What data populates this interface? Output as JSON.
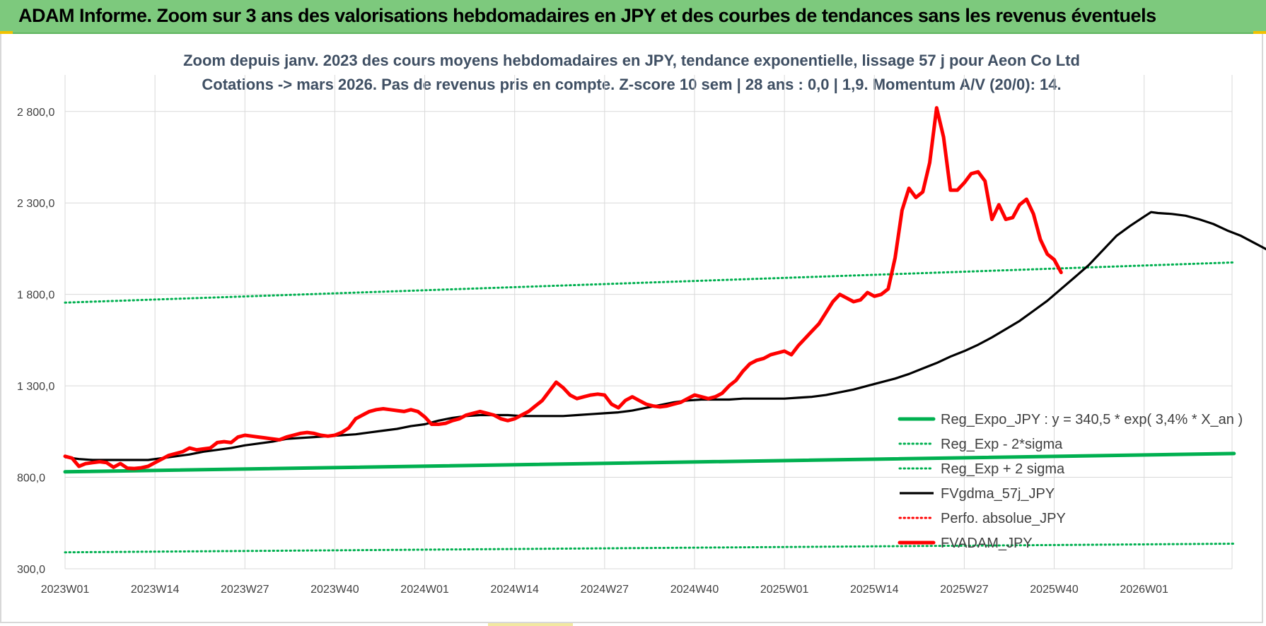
{
  "banner": {
    "title": "ADAM Informe. Zoom sur 3 ans des valorisations hebdomadaires en JPY et des courbes de tendances sans les revenus éventuels"
  },
  "colors": {
    "banner_bg": "#7dc97d",
    "reg_expo": "#00b050",
    "gdma": "#000000",
    "adam": "#ff0000",
    "grid": "#d9d9d9",
    "title_text": "#3f4f63"
  },
  "chart_data": {
    "type": "line",
    "title": [
      "Zoom depuis janv. 2023 des cours moyens hebdomadaires en JPY, tendance exponentielle, lissage 57 j pour Aeon Co Ltd",
      "Cotations -> mars 2026. Pas de revenus pris en compte. Z-score 10 sem | 28 ans : 0,0 | 1,9. Momentum A/V (20/0): 14."
    ],
    "x_ticks": [
      {
        "week": 0,
        "label": "2023W01"
      },
      {
        "week": 13,
        "label": "2023W14"
      },
      {
        "week": 26,
        "label": "2023W27"
      },
      {
        "week": 39,
        "label": "2023W40"
      },
      {
        "week": 52,
        "label": "2024W01"
      },
      {
        "week": 65,
        "label": "2024W14"
      },
      {
        "week": 78,
        "label": "2024W27"
      },
      {
        "week": 91,
        "label": "2024W40"
      },
      {
        "week": 104,
        "label": "2025W01"
      },
      {
        "week": 117,
        "label": "2025W14"
      },
      {
        "week": 130,
        "label": "2025W27"
      },
      {
        "week": 143,
        "label": "2025W40"
      },
      {
        "week": 156,
        "label": "2026W01"
      }
    ],
    "x_range": [
      0,
      169
    ],
    "ylim": [
      300,
      3000
    ],
    "y_ticks": [
      {
        "value": 300,
        "label": "300,0"
      },
      {
        "value": 800,
        "label": "800,0"
      },
      {
        "value": 1300,
        "label": "1 300,0"
      },
      {
        "value": 1800,
        "label": "1 800,0"
      },
      {
        "value": 2300,
        "label": "2 300,0"
      },
      {
        "value": 2800,
        "label": "2 800,0"
      }
    ],
    "grid": true,
    "legend_position": "bottom-right",
    "series": [
      {
        "name": "Reg_Expo_JPY : y = 340,5 * exp( 3,4% *  X_an )",
        "style": "thick-solid",
        "color": "#00b050",
        "points": [
          [
            0,
            830
          ],
          [
            169,
            930
          ]
        ]
      },
      {
        "name": "Reg_Exp - 2*sigma",
        "style": "dotted",
        "color": "#00b050",
        "points": [
          [
            0,
            390
          ],
          [
            169,
            437
          ]
        ]
      },
      {
        "name": "Reg_Exp + 2 sigma",
        "style": "dotted",
        "color": "#00b050",
        "points": [
          [
            0,
            1755
          ],
          [
            169,
            1975
          ]
        ]
      },
      {
        "name": "FVgdma_57j_JPY",
        "style": "solid",
        "color": "#000000",
        "points": [
          [
            0,
            910
          ],
          [
            2,
            900
          ],
          [
            4,
            895
          ],
          [
            6,
            895
          ],
          [
            8,
            895
          ],
          [
            10,
            895
          ],
          [
            12,
            895
          ],
          [
            14,
            905
          ],
          [
            16,
            915
          ],
          [
            18,
            925
          ],
          [
            20,
            940
          ],
          [
            22,
            950
          ],
          [
            24,
            960
          ],
          [
            26,
            975
          ],
          [
            28,
            985
          ],
          [
            30,
            995
          ],
          [
            32,
            1010
          ],
          [
            34,
            1015
          ],
          [
            36,
            1020
          ],
          [
            38,
            1025
          ],
          [
            40,
            1030
          ],
          [
            42,
            1035
          ],
          [
            44,
            1045
          ],
          [
            46,
            1055
          ],
          [
            48,
            1065
          ],
          [
            50,
            1080
          ],
          [
            52,
            1090
          ],
          [
            54,
            1110
          ],
          [
            56,
            1125
          ],
          [
            58,
            1135
          ],
          [
            60,
            1140
          ],
          [
            62,
            1140
          ],
          [
            64,
            1140
          ],
          [
            66,
            1135
          ],
          [
            68,
            1135
          ],
          [
            70,
            1135
          ],
          [
            72,
            1135
          ],
          [
            74,
            1140
          ],
          [
            76,
            1145
          ],
          [
            78,
            1150
          ],
          [
            80,
            1155
          ],
          [
            82,
            1165
          ],
          [
            84,
            1180
          ],
          [
            86,
            1195
          ],
          [
            88,
            1210
          ],
          [
            90,
            1220
          ],
          [
            92,
            1225
          ],
          [
            94,
            1225
          ],
          [
            96,
            1225
          ],
          [
            98,
            1230
          ],
          [
            100,
            1230
          ],
          [
            102,
            1230
          ],
          [
            104,
            1230
          ],
          [
            106,
            1235
          ],
          [
            108,
            1240
          ],
          [
            110,
            1250
          ],
          [
            112,
            1265
          ],
          [
            114,
            1280
          ],
          [
            116,
            1300
          ],
          [
            118,
            1320
          ],
          [
            120,
            1340
          ],
          [
            122,
            1365
          ],
          [
            124,
            1395
          ],
          [
            126,
            1425
          ],
          [
            128,
            1460
          ],
          [
            130,
            1490
          ],
          [
            132,
            1525
          ],
          [
            134,
            1565
          ],
          [
            136,
            1610
          ],
          [
            138,
            1655
          ],
          [
            140,
            1710
          ],
          [
            142,
            1765
          ],
          [
            144,
            1830
          ],
          [
            146,
            1895
          ],
          [
            148,
            1960
          ],
          [
            150,
            2040
          ],
          [
            152,
            2120
          ],
          [
            154,
            2175
          ],
          [
            156,
            2225
          ],
          [
            157,
            2250
          ],
          [
            158,
            2245
          ],
          [
            160,
            2240
          ],
          [
            162,
            2230
          ],
          [
            164,
            2210
          ],
          [
            166,
            2185
          ],
          [
            168,
            2150
          ],
          [
            170,
            2120
          ],
          [
            172,
            2080
          ],
          [
            174,
            2040
          ]
        ]
      },
      {
        "name": "Perfo. absolue_JPY",
        "style": "dotted",
        "color": "#ff0000",
        "points": []
      },
      {
        "name": "FVADAM_JPY",
        "style": "thick-solid",
        "color": "#ff0000",
        "points": [
          [
            0,
            915
          ],
          [
            1,
            905
          ],
          [
            2,
            860
          ],
          [
            3,
            875
          ],
          [
            4,
            880
          ],
          [
            5,
            885
          ],
          [
            6,
            880
          ],
          [
            7,
            855
          ],
          [
            8,
            875
          ],
          [
            9,
            850
          ],
          [
            10,
            848
          ],
          [
            11,
            852
          ],
          [
            12,
            860
          ],
          [
            13,
            880
          ],
          [
            14,
            900
          ],
          [
            15,
            920
          ],
          [
            16,
            930
          ],
          [
            17,
            940
          ],
          [
            18,
            960
          ],
          [
            19,
            950
          ],
          [
            20,
            955
          ],
          [
            21,
            960
          ],
          [
            22,
            990
          ],
          [
            23,
            995
          ],
          [
            24,
            990
          ],
          [
            25,
            1020
          ],
          [
            26,
            1030
          ],
          [
            27,
            1025
          ],
          [
            28,
            1020
          ],
          [
            29,
            1015
          ],
          [
            30,
            1010
          ],
          [
            31,
            1005
          ],
          [
            32,
            1020
          ],
          [
            33,
            1030
          ],
          [
            34,
            1040
          ],
          [
            35,
            1045
          ],
          [
            36,
            1040
          ],
          [
            37,
            1030
          ],
          [
            38,
            1025
          ],
          [
            39,
            1030
          ],
          [
            40,
            1045
          ],
          [
            41,
            1070
          ],
          [
            42,
            1120
          ],
          [
            43,
            1140
          ],
          [
            44,
            1160
          ],
          [
            45,
            1170
          ],
          [
            46,
            1175
          ],
          [
            47,
            1170
          ],
          [
            48,
            1165
          ],
          [
            49,
            1160
          ],
          [
            50,
            1170
          ],
          [
            51,
            1160
          ],
          [
            52,
            1130
          ],
          [
            53,
            1090
          ],
          [
            54,
            1090
          ],
          [
            55,
            1095
          ],
          [
            56,
            1110
          ],
          [
            57,
            1120
          ],
          [
            58,
            1140
          ],
          [
            59,
            1150
          ],
          [
            60,
            1160
          ],
          [
            61,
            1150
          ],
          [
            62,
            1140
          ],
          [
            63,
            1120
          ],
          [
            64,
            1110
          ],
          [
            65,
            1120
          ],
          [
            66,
            1140
          ],
          [
            67,
            1160
          ],
          [
            68,
            1190
          ],
          [
            69,
            1220
          ],
          [
            70,
            1270
          ],
          [
            71,
            1320
          ],
          [
            72,
            1290
          ],
          [
            73,
            1250
          ],
          [
            74,
            1230
          ],
          [
            75,
            1240
          ],
          [
            76,
            1250
          ],
          [
            77,
            1255
          ],
          [
            78,
            1250
          ],
          [
            79,
            1200
          ],
          [
            80,
            1180
          ],
          [
            81,
            1220
          ],
          [
            82,
            1240
          ],
          [
            83,
            1220
          ],
          [
            84,
            1200
          ],
          [
            85,
            1190
          ],
          [
            86,
            1185
          ],
          [
            87,
            1190
          ],
          [
            88,
            1200
          ],
          [
            89,
            1210
          ],
          [
            90,
            1230
          ],
          [
            91,
            1250
          ],
          [
            92,
            1240
          ],
          [
            93,
            1230
          ],
          [
            94,
            1240
          ],
          [
            95,
            1260
          ],
          [
            96,
            1300
          ],
          [
            97,
            1330
          ],
          [
            98,
            1380
          ],
          [
            99,
            1420
          ],
          [
            100,
            1440
          ],
          [
            101,
            1450
          ],
          [
            102,
            1470
          ],
          [
            103,
            1480
          ],
          [
            104,
            1490
          ],
          [
            105,
            1470
          ],
          [
            106,
            1520
          ],
          [
            107,
            1560
          ],
          [
            108,
            1600
          ],
          [
            109,
            1640
          ],
          [
            110,
            1700
          ],
          [
            111,
            1760
          ],
          [
            112,
            1800
          ],
          [
            113,
            1780
          ],
          [
            114,
            1760
          ],
          [
            115,
            1770
          ],
          [
            116,
            1810
          ],
          [
            117,
            1790
          ],
          [
            118,
            1800
          ],
          [
            119,
            1830
          ],
          [
            120,
            2000
          ],
          [
            121,
            2260
          ],
          [
            122,
            2380
          ],
          [
            123,
            2330
          ],
          [
            124,
            2360
          ],
          [
            125,
            2520
          ],
          [
            126,
            2820
          ],
          [
            127,
            2660
          ],
          [
            128,
            2370
          ],
          [
            129,
            2370
          ],
          [
            130,
            2410
          ],
          [
            131,
            2460
          ],
          [
            132,
            2470
          ],
          [
            133,
            2420
          ],
          [
            134,
            2210
          ],
          [
            135,
            2290
          ],
          [
            136,
            2210
          ],
          [
            137,
            2220
          ],
          [
            138,
            2290
          ],
          [
            139,
            2320
          ],
          [
            140,
            2240
          ],
          [
            141,
            2100
          ],
          [
            142,
            2020
          ],
          [
            143,
            1990
          ],
          [
            144,
            1920
          ]
        ]
      }
    ]
  }
}
